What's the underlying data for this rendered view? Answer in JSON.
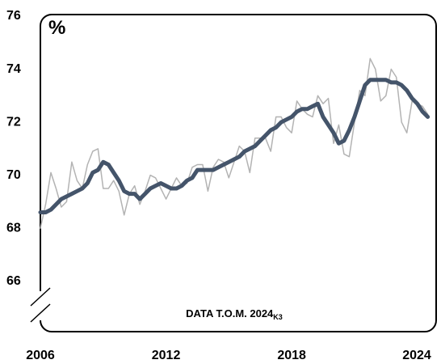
{
  "chart_data": {
    "type": "line",
    "unit_label": "%",
    "annotation": "DATA T.O.M. 2024",
    "annotation_sub": "K3",
    "x": [
      2006,
      2006.25,
      2006.5,
      2006.75,
      2007,
      2007.25,
      2007.5,
      2007.75,
      2008,
      2008.25,
      2008.5,
      2008.75,
      2009,
      2009.25,
      2009.5,
      2009.75,
      2010,
      2010.25,
      2010.5,
      2010.75,
      2011,
      2011.25,
      2011.5,
      2011.75,
      2012,
      2012.25,
      2012.5,
      2012.75,
      2013,
      2013.25,
      2013.5,
      2013.75,
      2014,
      2014.25,
      2014.5,
      2014.75,
      2015,
      2015.25,
      2015.5,
      2015.75,
      2016,
      2016.25,
      2016.5,
      2016.75,
      2017,
      2017.25,
      2017.5,
      2017.75,
      2018,
      2018.25,
      2018.5,
      2018.75,
      2019,
      2019.25,
      2019.5,
      2019.75,
      2020,
      2020.25,
      2020.5,
      2020.75,
      2021,
      2021.25,
      2021.5,
      2021.75,
      2022,
      2022.25,
      2022.5,
      2022.75,
      2023,
      2023.25,
      2023.5,
      2023.75,
      2024,
      2024.25,
      2024.5
    ],
    "series": [
      {
        "color": "#b3b3b3",
        "width": 1.5,
        "values": [
          68.0,
          68.9,
          70.1,
          69.5,
          68.8,
          69.0,
          70.5,
          69.8,
          69.5,
          70.4,
          70.9,
          71.0,
          69.5,
          69.5,
          69.8,
          69.4,
          68.5,
          69.3,
          69.6,
          68.9,
          69.4,
          70.0,
          69.9,
          69.5,
          69.1,
          69.5,
          69.9,
          69.6,
          69.7,
          70.3,
          70.4,
          70.4,
          69.4,
          70.3,
          70.6,
          70.5,
          69.9,
          70.5,
          71.1,
          70.9,
          70.1,
          71.4,
          71.4,
          71.4,
          70.9,
          72.2,
          72.2,
          71.8,
          71.6,
          72.8,
          72.5,
          72.3,
          72.2,
          73.0,
          72.7,
          72.9,
          71.2,
          71.9,
          70.8,
          70.7,
          72.0,
          73.2,
          73.0,
          74.4,
          74.0,
          72.8,
          73.0,
          74.0,
          73.7,
          72.0,
          71.6,
          72.8,
          72.7,
          72.6,
          72.3
        ]
      },
      {
        "color": "#44546a",
        "width": 5,
        "values": [
          68.6,
          68.6,
          68.7,
          68.9,
          69.1,
          69.2,
          69.3,
          69.4,
          69.5,
          69.7,
          70.1,
          70.2,
          70.5,
          70.4,
          70.1,
          69.8,
          69.4,
          69.3,
          69.3,
          69.1,
          69.3,
          69.5,
          69.6,
          69.7,
          69.6,
          69.5,
          69.5,
          69.6,
          69.8,
          69.9,
          70.2,
          70.2,
          70.2,
          70.2,
          70.3,
          70.4,
          70.5,
          70.6,
          70.7,
          70.9,
          71.0,
          71.1,
          71.3,
          71.5,
          71.7,
          71.8,
          72.0,
          72.1,
          72.2,
          72.4,
          72.5,
          72.5,
          72.6,
          72.7,
          72.2,
          71.9,
          71.6,
          71.2,
          71.3,
          71.7,
          72.2,
          72.8,
          73.4,
          73.6,
          73.6,
          73.6,
          73.6,
          73.5,
          73.5,
          73.4,
          73.2,
          72.9,
          72.7,
          72.4,
          72.2
        ]
      }
    ],
    "xlim": [
      2006,
      2024.9
    ],
    "xticks": [
      2006,
      2012,
      2018,
      2024
    ],
    "ylim": [
      64.1,
      76
    ],
    "yticks": [
      66,
      68,
      70,
      72,
      74,
      76
    ],
    "grid": false
  }
}
